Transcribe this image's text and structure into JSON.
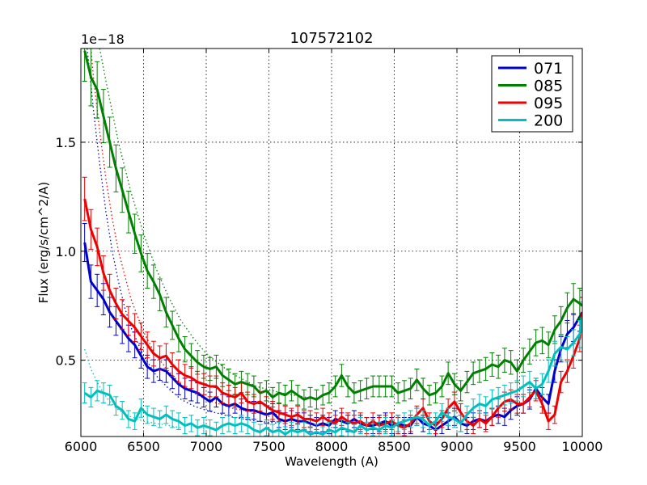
{
  "chart_data": {
    "type": "line",
    "title": "107572102",
    "xlabel": "Wavelength (A)",
    "ylabel": "Flux (erg/s/cm^2/A)",
    "offset_text": "1e−18",
    "xlim": [
      6000,
      10000
    ],
    "ylim": [
      0.15,
      1.93
    ],
    "xticks": [
      6000,
      6500,
      7000,
      7500,
      8000,
      8500,
      9000,
      9500,
      10000
    ],
    "yticks": [
      0.5,
      1.0,
      1.5
    ],
    "ytick_labels": [
      "0.5",
      "1.0",
      "1.5"
    ],
    "grid": true,
    "legend_position": "top-right",
    "series": [
      {
        "name": "071",
        "color": "#0000cc",
        "x": [
          6030,
          6080,
          6130,
          6180,
          6230,
          6280,
          6330,
          6380,
          6430,
          6480,
          6530,
          6580,
          6630,
          6680,
          6730,
          6780,
          6830,
          6880,
          6930,
          6980,
          7030,
          7080,
          7130,
          7180,
          7230,
          7280,
          7330,
          7380,
          7430,
          7480,
          7530,
          7580,
          7630,
          7680,
          7730,
          7780,
          7830,
          7880,
          7930,
          7980,
          8030,
          8080,
          8130,
          8180,
          8230,
          8280,
          8330,
          8380,
          8430,
          8480,
          8530,
          8580,
          8630,
          8680,
          8730,
          8780,
          8830,
          8880,
          8930,
          8980,
          9030,
          9080,
          9130,
          9180,
          9230,
          9280,
          9330,
          9380,
          9430,
          9480,
          9530,
          9580,
          9630,
          9680,
          9730,
          9780,
          9830,
          9880,
          9930,
          9980,
          10000
        ],
        "y": [
          1.04,
          0.86,
          0.82,
          0.78,
          0.72,
          0.68,
          0.64,
          0.6,
          0.57,
          0.52,
          0.47,
          0.45,
          0.46,
          0.45,
          0.42,
          0.39,
          0.37,
          0.36,
          0.35,
          0.33,
          0.31,
          0.33,
          0.3,
          0.29,
          0.3,
          0.28,
          0.27,
          0.27,
          0.26,
          0.25,
          0.26,
          0.23,
          0.22,
          0.23,
          0.22,
          0.22,
          0.21,
          0.2,
          0.21,
          0.2,
          0.23,
          0.22,
          0.21,
          0.23,
          0.21,
          0.2,
          0.2,
          0.21,
          0.22,
          0.2,
          0.21,
          0.2,
          0.2,
          0.24,
          0.21,
          0.2,
          0.18,
          0.2,
          0.22,
          0.24,
          0.21,
          0.2,
          0.22,
          0.23,
          0.22,
          0.24,
          0.25,
          0.24,
          0.27,
          0.29,
          0.3,
          0.32,
          0.37,
          0.33,
          0.3,
          0.45,
          0.55,
          0.62,
          0.65,
          0.7,
          0.72
        ]
      },
      {
        "name": "085",
        "color": "#008000",
        "x": [
          6030,
          6080,
          6130,
          6180,
          6230,
          6280,
          6330,
          6380,
          6430,
          6480,
          6530,
          6580,
          6630,
          6680,
          6730,
          6780,
          6830,
          6880,
          6930,
          6980,
          7030,
          7080,
          7130,
          7180,
          7230,
          7280,
          7330,
          7380,
          7430,
          7480,
          7530,
          7580,
          7630,
          7680,
          7730,
          7780,
          7830,
          7880,
          7930,
          7980,
          8030,
          8080,
          8130,
          8180,
          8230,
          8280,
          8330,
          8380,
          8430,
          8480,
          8530,
          8580,
          8630,
          8680,
          8730,
          8780,
          8830,
          8880,
          8930,
          8980,
          9030,
          9080,
          9130,
          9180,
          9230,
          9280,
          9330,
          9380,
          9430,
          9480,
          9530,
          9580,
          9630,
          9680,
          9730,
          9780,
          9830,
          9880,
          9930,
          9980,
          10000
        ],
        "y": [
          1.92,
          1.8,
          1.74,
          1.62,
          1.5,
          1.38,
          1.28,
          1.18,
          1.08,
          0.99,
          0.91,
          0.86,
          0.8,
          0.72,
          0.66,
          0.6,
          0.55,
          0.52,
          0.49,
          0.47,
          0.46,
          0.47,
          0.43,
          0.41,
          0.39,
          0.4,
          0.39,
          0.38,
          0.35,
          0.36,
          0.33,
          0.35,
          0.34,
          0.36,
          0.34,
          0.32,
          0.33,
          0.32,
          0.34,
          0.35,
          0.38,
          0.43,
          0.38,
          0.35,
          0.36,
          0.37,
          0.38,
          0.38,
          0.38,
          0.38,
          0.35,
          0.36,
          0.37,
          0.41,
          0.37,
          0.34,
          0.35,
          0.38,
          0.44,
          0.39,
          0.36,
          0.4,
          0.44,
          0.45,
          0.46,
          0.48,
          0.47,
          0.5,
          0.49,
          0.45,
          0.5,
          0.54,
          0.58,
          0.59,
          0.57,
          0.64,
          0.68,
          0.74,
          0.78,
          0.76,
          0.75
        ]
      },
      {
        "name": "095",
        "color": "#ee0000",
        "x": [
          6030,
          6080,
          6130,
          6180,
          6230,
          6280,
          6330,
          6380,
          6430,
          6480,
          6530,
          6580,
          6630,
          6680,
          6730,
          6780,
          6830,
          6880,
          6930,
          6980,
          7030,
          7080,
          7130,
          7180,
          7230,
          7280,
          7330,
          7380,
          7430,
          7480,
          7530,
          7580,
          7630,
          7680,
          7730,
          7780,
          7830,
          7880,
          7930,
          7980,
          8030,
          8080,
          8130,
          8180,
          8230,
          8280,
          8330,
          8380,
          8430,
          8480,
          8530,
          8580,
          8630,
          8680,
          8730,
          8780,
          8830,
          8880,
          8930,
          8980,
          9030,
          9080,
          9130,
          9180,
          9230,
          9280,
          9330,
          9380,
          9430,
          9480,
          9530,
          9580,
          9630,
          9680,
          9730,
          9780,
          9830,
          9880,
          9930,
          9980,
          10000
        ],
        "y": [
          1.24,
          1.1,
          1.02,
          0.9,
          0.82,
          0.76,
          0.71,
          0.68,
          0.65,
          0.61,
          0.57,
          0.53,
          0.51,
          0.52,
          0.48,
          0.45,
          0.43,
          0.42,
          0.4,
          0.39,
          0.38,
          0.38,
          0.35,
          0.34,
          0.33,
          0.35,
          0.31,
          0.3,
          0.31,
          0.29,
          0.27,
          0.26,
          0.25,
          0.24,
          0.25,
          0.23,
          0.23,
          0.22,
          0.24,
          0.22,
          0.21,
          0.24,
          0.22,
          0.21,
          0.22,
          0.2,
          0.22,
          0.2,
          0.21,
          0.22,
          0.2,
          0.19,
          0.21,
          0.25,
          0.28,
          0.22,
          0.2,
          0.23,
          0.28,
          0.31,
          0.26,
          0.22,
          0.2,
          0.23,
          0.21,
          0.24,
          0.28,
          0.31,
          0.32,
          0.3,
          0.3,
          0.33,
          0.36,
          0.3,
          0.22,
          0.25,
          0.4,
          0.45,
          0.52,
          0.6,
          0.72
        ]
      },
      {
        "name": "200",
        "color": "#00bfbf",
        "x": [
          6030,
          6080,
          6130,
          6180,
          6230,
          6280,
          6330,
          6380,
          6430,
          6480,
          6530,
          6580,
          6630,
          6680,
          6730,
          6780,
          6830,
          6880,
          6930,
          6980,
          7030,
          7080,
          7130,
          7180,
          7230,
          7280,
          7330,
          7380,
          7430,
          7480,
          7530,
          7580,
          7630,
          7680,
          7730,
          7780,
          7830,
          7880,
          7930,
          7980,
          8030,
          8080,
          8130,
          8180,
          8230,
          8280,
          8330,
          8380,
          8430,
          8480,
          8530,
          8580,
          8630,
          8680,
          8730,
          8780,
          8830,
          8880,
          8930,
          8980,
          9030,
          9080,
          9130,
          9180,
          9230,
          9280,
          9330,
          9380,
          9430,
          9480,
          9530,
          9580,
          9630,
          9680,
          9730,
          9780,
          9830,
          9880,
          9930,
          9980,
          10000
        ],
        "y": [
          0.35,
          0.33,
          0.36,
          0.35,
          0.34,
          0.29,
          0.27,
          0.23,
          0.22,
          0.28,
          0.25,
          0.24,
          0.23,
          0.25,
          0.23,
          0.22,
          0.2,
          0.21,
          0.19,
          0.2,
          0.19,
          0.18,
          0.2,
          0.21,
          0.2,
          0.21,
          0.2,
          0.18,
          0.17,
          0.19,
          0.17,
          0.18,
          0.16,
          0.18,
          0.17,
          0.18,
          0.16,
          0.17,
          0.16,
          0.18,
          0.17,
          0.19,
          0.18,
          0.17,
          0.2,
          0.18,
          0.19,
          0.18,
          0.2,
          0.19,
          0.21,
          0.22,
          0.23,
          0.24,
          0.23,
          0.2,
          0.22,
          0.26,
          0.24,
          0.23,
          0.21,
          0.25,
          0.28,
          0.3,
          0.29,
          0.32,
          0.33,
          0.34,
          0.35,
          0.36,
          0.38,
          0.4,
          0.37,
          0.39,
          0.45,
          0.53,
          0.56,
          0.55,
          0.58,
          0.62,
          0.7
        ]
      }
    ],
    "model_curves": [
      {
        "series": "071",
        "color": "#0000cc",
        "x": [
          6050,
          6100,
          6150,
          6200,
          6250,
          6300,
          6350,
          6400,
          6500,
          6600,
          6700,
          6800,
          6900,
          7000,
          7200,
          7400,
          7600
        ],
        "y": [
          1.93,
          1.65,
          1.4,
          1.18,
          1.0,
          0.86,
          0.74,
          0.65,
          0.52,
          0.43,
          0.37,
          0.32,
          0.29,
          0.27,
          0.24,
          0.22,
          0.21
        ]
      },
      {
        "series": "085",
        "color": "#008000",
        "x": [
          6150,
          6200,
          6300,
          6400,
          6500,
          6600,
          6700,
          6800,
          6900,
          7000,
          7200,
          7400,
          7600,
          7800
        ],
        "y": [
          1.93,
          1.78,
          1.5,
          1.27,
          1.08,
          0.92,
          0.79,
          0.68,
          0.6,
          0.53,
          0.44,
          0.38,
          0.35,
          0.33
        ]
      },
      {
        "series": "095",
        "color": "#ee0000",
        "x": [
          6080,
          6100,
          6150,
          6200,
          6250,
          6300,
          6400,
          6500,
          6600,
          6700,
          6800,
          6900,
          7000,
          7200,
          7400,
          7600
        ],
        "y": [
          1.93,
          1.8,
          1.55,
          1.33,
          1.15,
          1.0,
          0.78,
          0.63,
          0.52,
          0.45,
          0.39,
          0.35,
          0.32,
          0.28,
          0.26,
          0.25
        ]
      },
      {
        "series": "200",
        "color": "#00bfbf",
        "x": [
          6030,
          6080,
          6130,
          6180,
          6230,
          6280,
          6330,
          6400,
          6500,
          6600,
          6700,
          6800
        ],
        "y": [
          0.55,
          0.46,
          0.4,
          0.35,
          0.31,
          0.28,
          0.26,
          0.24,
          0.22,
          0.21,
          0.2,
          0.19
        ]
      }
    ]
  }
}
